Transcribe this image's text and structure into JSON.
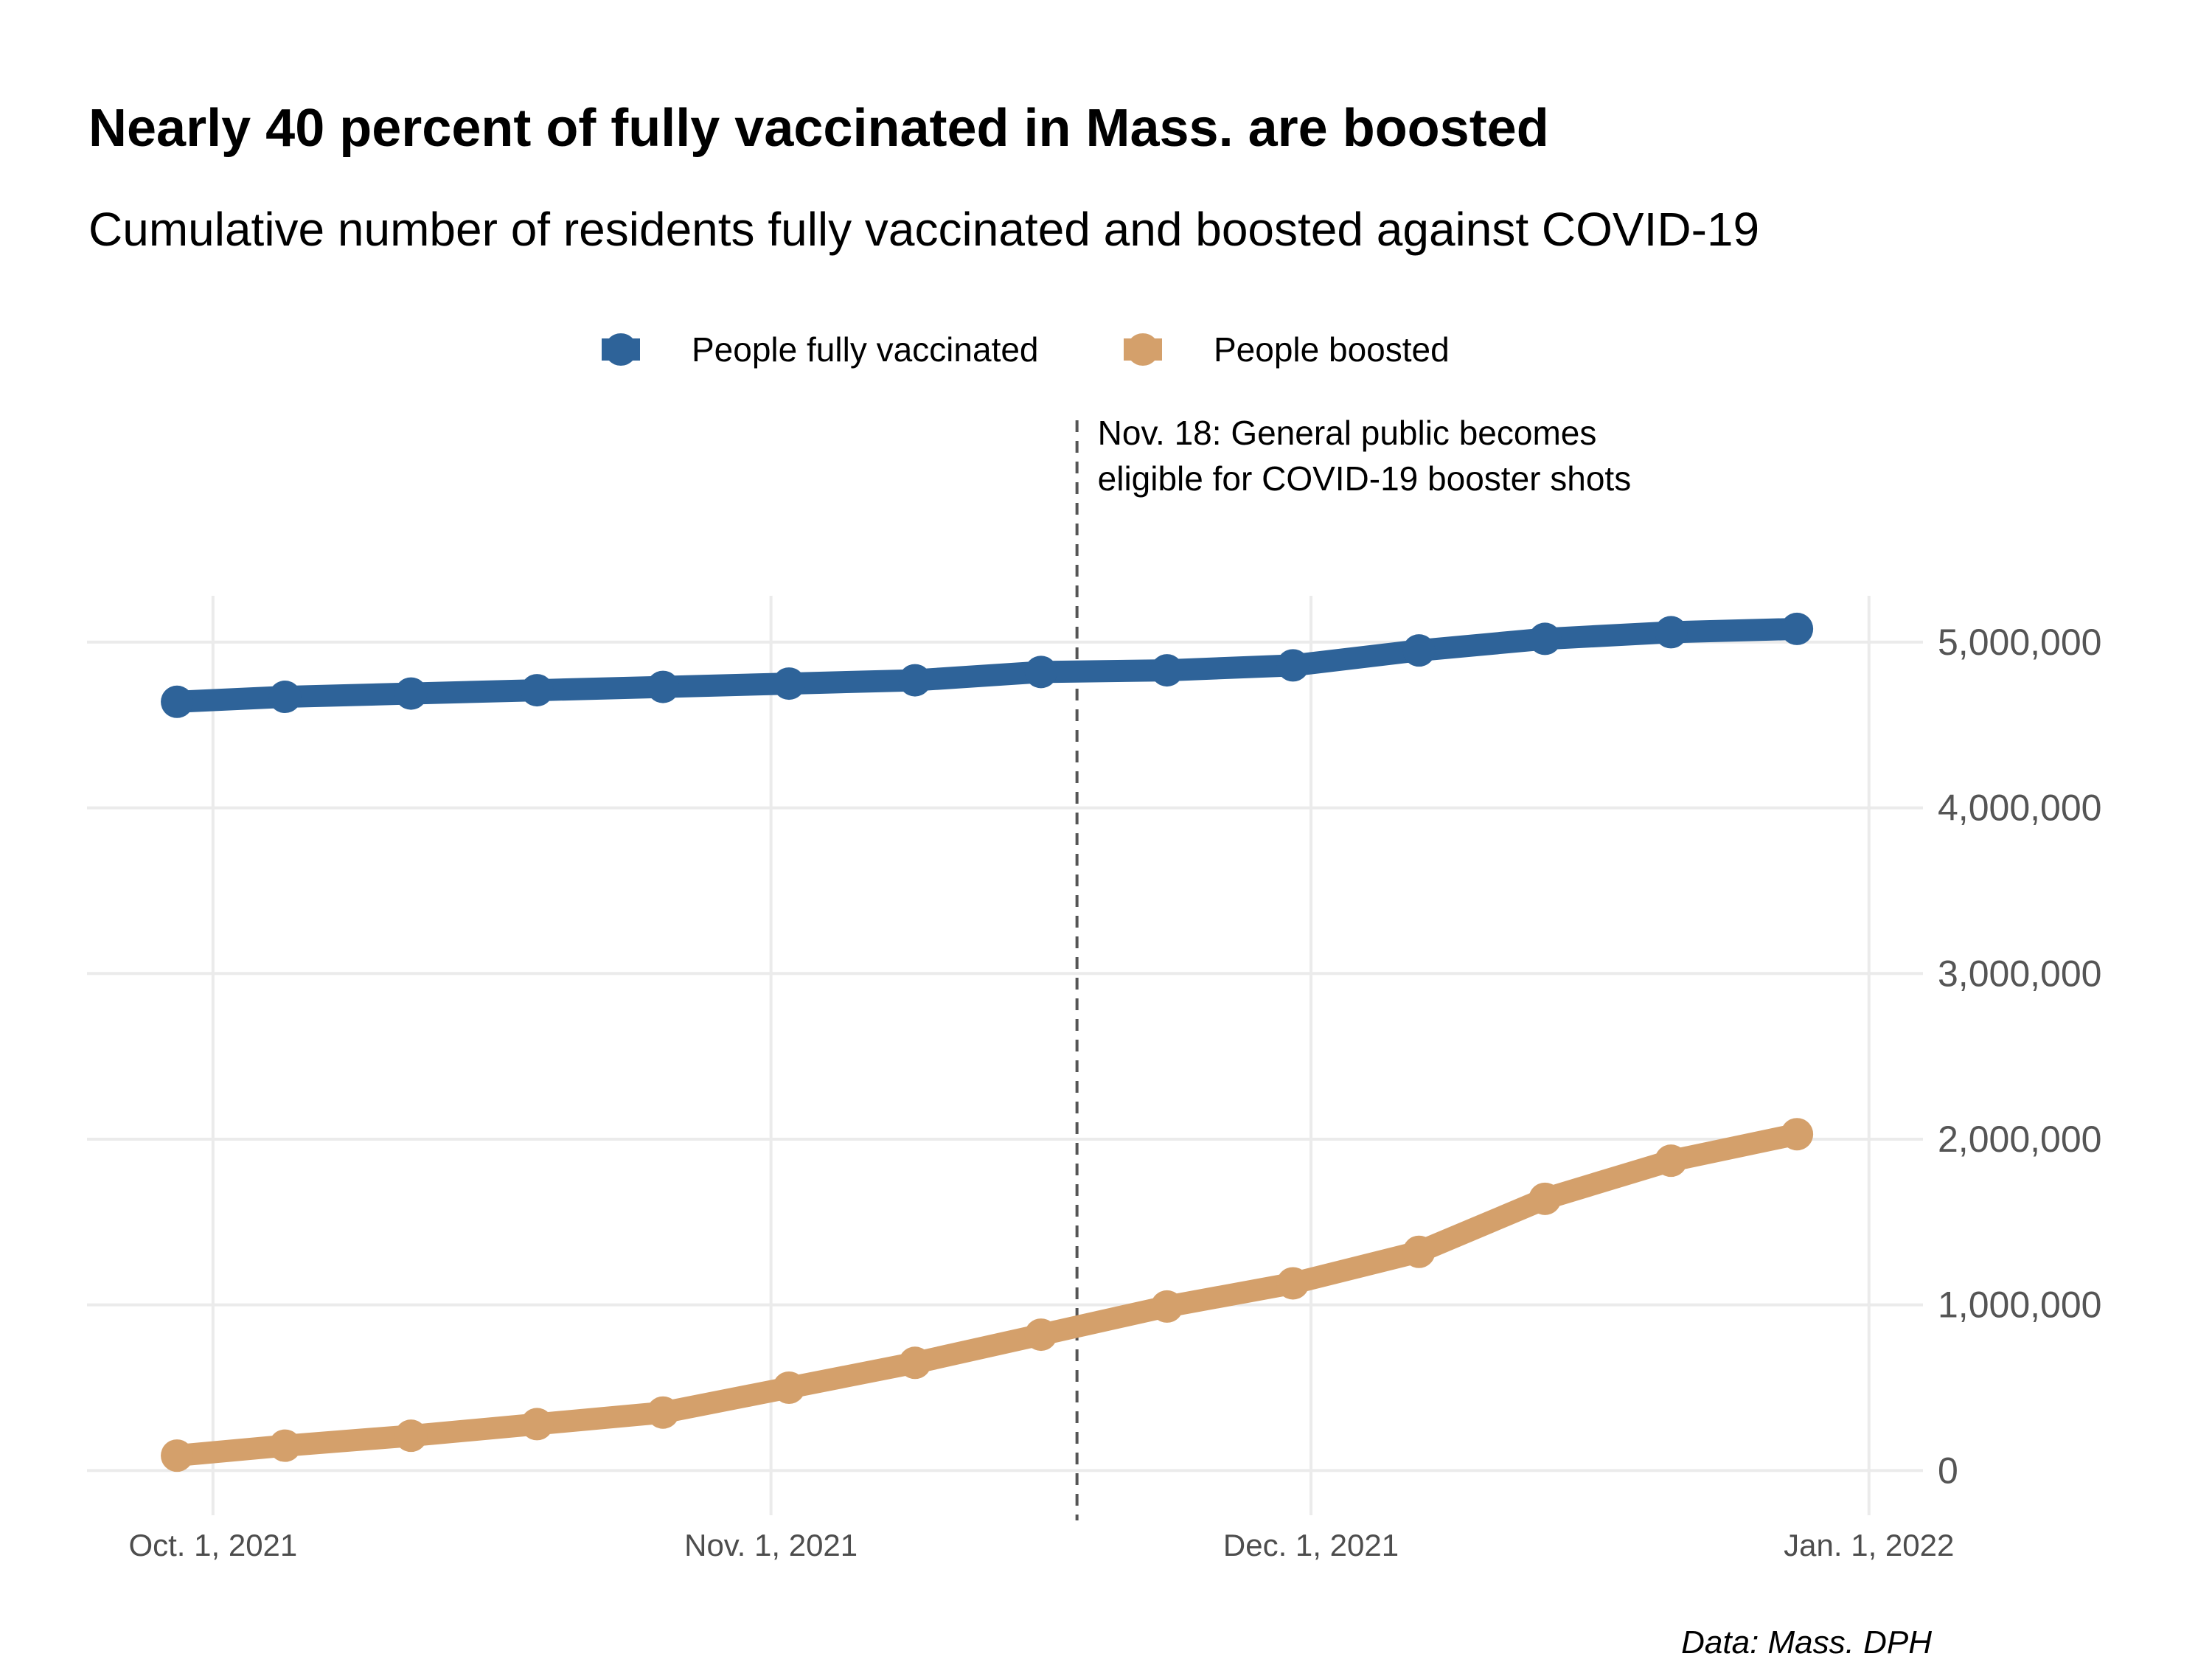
{
  "title": "Nearly 40 percent of fully vaccinated in Mass. are boosted",
  "subtitle": "Cumulative number of residents fully vaccinated and boosted against COVID-19",
  "caption": "Data: Mass. DPH",
  "annotation": {
    "date": "2021-11-18",
    "lines": [
      "Nov. 18: General public becomes",
      "eligible for COVID-19 booster shots"
    ]
  },
  "chart_data": {
    "type": "line",
    "x_type": "date",
    "xlim": [
      "2021-09-24",
      "2022-01-04"
    ],
    "ylim": [
      -270000,
      5280000
    ],
    "x_ticks": [
      {
        "date": "2021-10-01",
        "label": "Oct.  1, 2021"
      },
      {
        "date": "2021-11-01",
        "label": "Nov.  1, 2021"
      },
      {
        "date": "2021-12-01",
        "label": "Dec.  1, 2021"
      },
      {
        "date": "2022-01-01",
        "label": "Jan.  1, 2022"
      }
    ],
    "y_ticks": [
      {
        "value": 0,
        "label": "0"
      },
      {
        "value": 1000000,
        "label": "1,000,000"
      },
      {
        "value": 2000000,
        "label": "2,000,000"
      },
      {
        "value": 3000000,
        "label": "3,000,000"
      },
      {
        "value": 4000000,
        "label": "4,000,000"
      },
      {
        "value": 5000000,
        "label": "5,000,000"
      }
    ],
    "y_axis_position": "right",
    "grid": true,
    "legend_position": "top",
    "x": [
      "2021-09-29",
      "2021-10-05",
      "2021-10-12",
      "2021-10-19",
      "2021-10-26",
      "2021-11-02",
      "2021-11-09",
      "2021-11-16",
      "2021-11-23",
      "2021-11-30",
      "2021-12-07",
      "2021-12-14",
      "2021-12-21",
      "2021-12-28"
    ],
    "series": [
      {
        "name": "People fully vaccinated",
        "color": "#2e6399",
        "values": [
          4640000,
          4670000,
          4690000,
          4710000,
          4730000,
          4750000,
          4770000,
          4820000,
          4830000,
          4860000,
          4950000,
          5020000,
          5060000,
          5080000
        ]
      },
      {
        "name": "People boosted",
        "color": "#d4a06b",
        "values": [
          90000,
          150000,
          210000,
          280000,
          350000,
          500000,
          650000,
          820000,
          990000,
          1130000,
          1320000,
          1640000,
          1870000,
          2030000
        ]
      }
    ]
  }
}
